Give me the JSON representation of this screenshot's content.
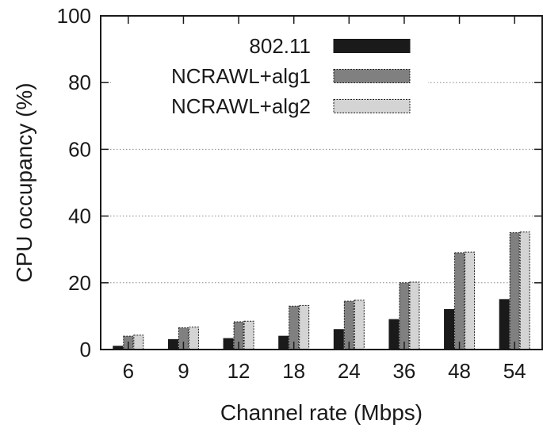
{
  "chart_data": {
    "type": "bar",
    "xlabel": "Channel rate (Mbps)",
    "ylabel": "CPU occupancy (%)",
    "ylim": [
      0,
      100
    ],
    "yticks": [
      0,
      20,
      40,
      60,
      80,
      100
    ],
    "grid": "horizontal dotted",
    "legend_position": "top-left",
    "categories": [
      "6",
      "9",
      "12",
      "18",
      "24",
      "36",
      "48",
      "54"
    ],
    "series": [
      {
        "name": "802.11",
        "values": [
          1,
          3,
          3.3,
          4,
          6,
          9,
          12,
          15
        ],
        "color": "#1a1a1a",
        "style": "solid"
      },
      {
        "name": "NCRAWL+alg1",
        "values": [
          4,
          6.5,
          8.3,
          13,
          14.5,
          20,
          29,
          35
        ],
        "color": "#808080",
        "style": "dashed"
      },
      {
        "name": "NCRAWL+alg2",
        "values": [
          4.3,
          6.7,
          8.5,
          13.2,
          14.8,
          20.2,
          29.2,
          35.2
        ],
        "color": "#d4d4d4",
        "style": "dashed"
      }
    ]
  }
}
